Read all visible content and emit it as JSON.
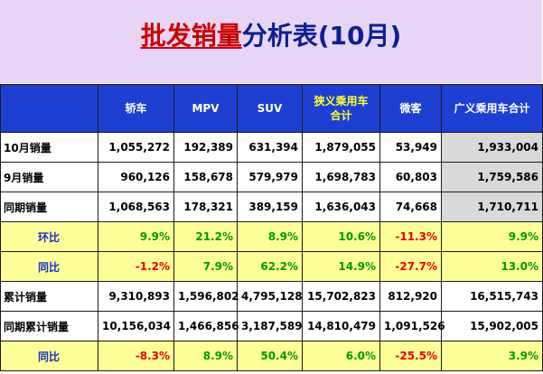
{
  "title": {
    "highlight": "批发销量",
    "rest": "分析表(10月)"
  },
  "columns": [
    "轿车",
    "MPV",
    "SUV",
    "狭义乘用车合计",
    "微客",
    "广义乘用车合计"
  ],
  "columns_wrapped": [
    [
      "轿车"
    ],
    [
      "MPV"
    ],
    [
      "SUV"
    ],
    [
      "狭义乘用车",
      "合计"
    ],
    [
      "微客"
    ],
    [
      "广义乘用车合计"
    ]
  ],
  "colors": {
    "header_bg": "#1d3fd1",
    "header_text": "#ffffff",
    "header_highlight": "#ffff33",
    "positive": "#009900",
    "negative": "#ee0000",
    "pct_row_bg": "#ffff99",
    "total_bg": "#d9d9d9",
    "title_bg": "#e8d4f4"
  },
  "rows": [
    {
      "label": "10月销量",
      "type": "num",
      "values": [
        "1,055,272",
        "192,389",
        "631,394",
        "1,879,055",
        "53,949",
        "1,933,004"
      ]
    },
    {
      "label": "9月销量",
      "type": "num",
      "values": [
        "960,126",
        "158,678",
        "579,979",
        "1,698,783",
        "60,803",
        "1,759,586"
      ]
    },
    {
      "label": "同期销量",
      "type": "num",
      "values": [
        "1,068,563",
        "178,321",
        "389,159",
        "1,636,043",
        "74,668",
        "1,710,711"
      ]
    },
    {
      "label": "环比",
      "type": "pct",
      "values": [
        "9.9%",
        "21.2%",
        "8.9%",
        "10.6%",
        "-11.3%",
        "9.9%"
      ]
    },
    {
      "label": "同比",
      "type": "pct",
      "values": [
        "-1.2%",
        "7.9%",
        "62.2%",
        "14.9%",
        "-27.7%",
        "13.0%"
      ]
    },
    {
      "label": "累计销量",
      "type": "cum",
      "values": [
        "9,310,893",
        "1,596,802",
        "4,795,128",
        "15,702,823",
        "812,920",
        "16,515,743"
      ]
    },
    {
      "label": "同期累计销量",
      "type": "cum",
      "values": [
        "10,156,034",
        "1,466,856",
        "3,187,589",
        "14,810,479",
        "1,091,526",
        "15,902,005"
      ]
    },
    {
      "label": "同比",
      "type": "pct",
      "values": [
        "-8.3%",
        "8.9%",
        "50.4%",
        "6.0%",
        "-25.5%",
        "3.9%"
      ]
    }
  ]
}
